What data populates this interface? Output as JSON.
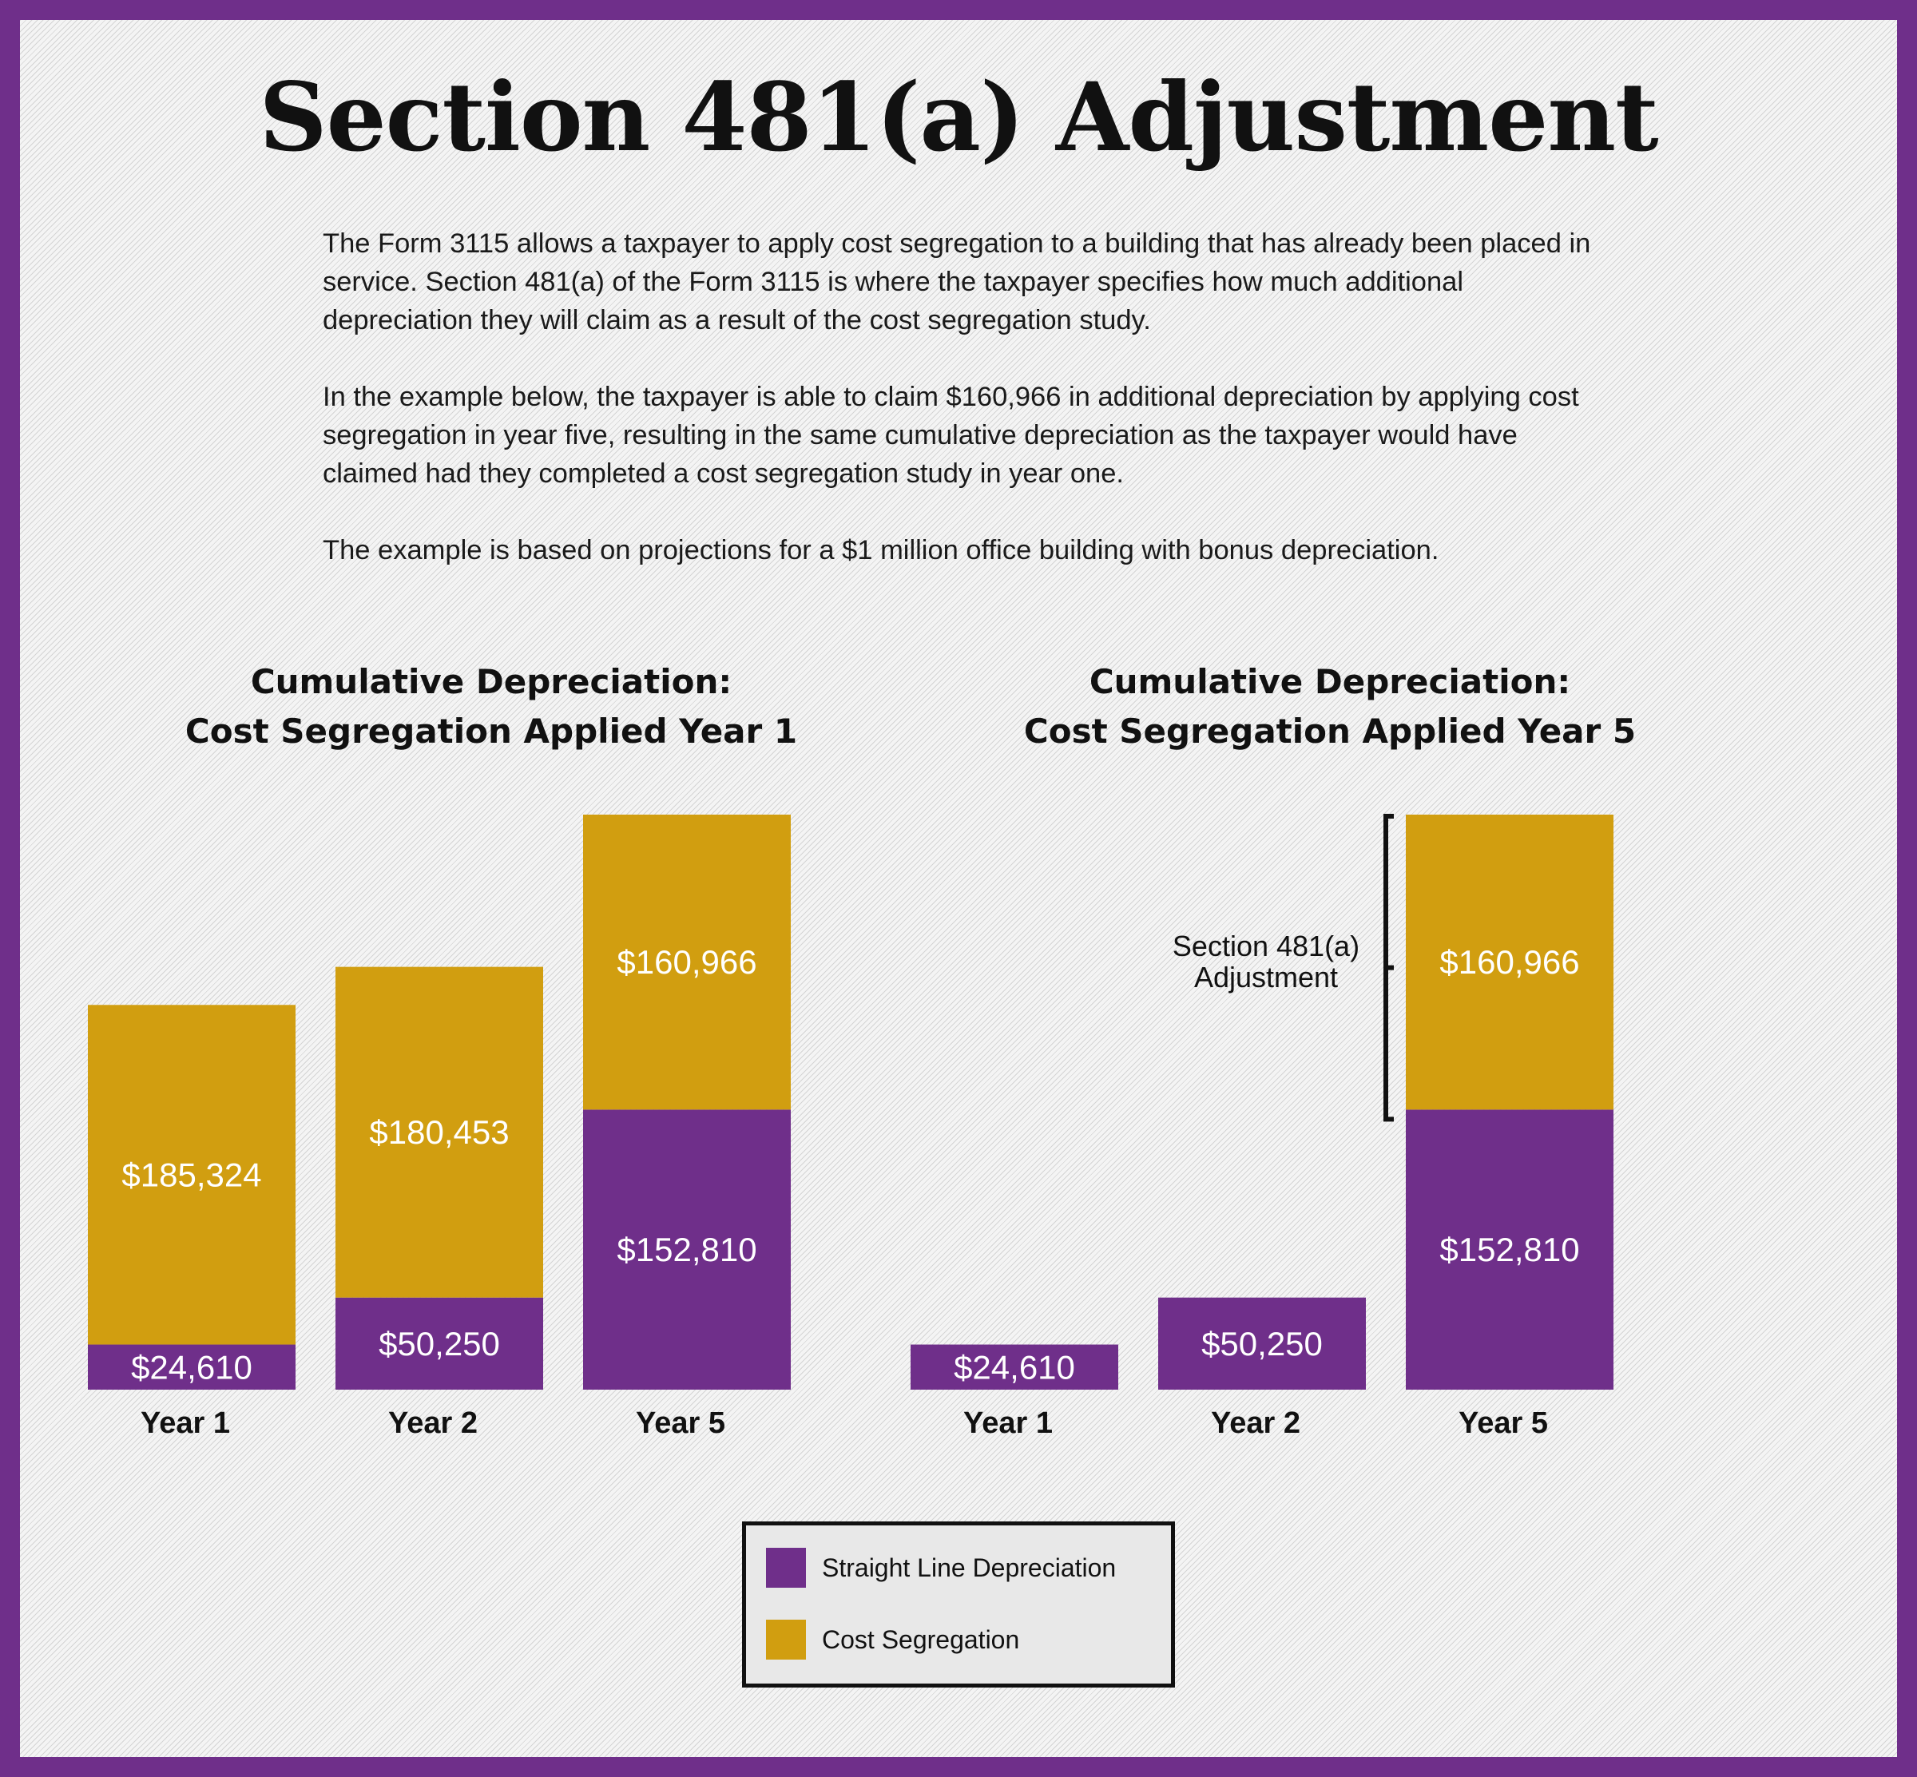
{
  "title": "Section 481(a) Adjustment",
  "intro": {
    "p1": "The Form 3115 allows a taxpayer to apply cost segregation to a building that has already been placed in service. Section 481(a) of the Form 3115 is where the taxpayer specifies how much additional depreciation they will claim as a result of the cost segregation study.",
    "p2": "In the example below, the taxpayer is able to claim $160,966 in additional depreciation by applying cost segregation in year five, resulting in the same cumulative depreciation as the taxpayer would have claimed had they completed a cost segregation study in year one.",
    "p3": "The example is based on projections for a $1 million office building with bonus depreciation."
  },
  "colors": {
    "straight_line": "#6f2f8a",
    "cost_seg": "#d19e10",
    "border": "#6f2f8a"
  },
  "legend": {
    "straight_line": "Straight Line Depreciation",
    "cost_seg": "Cost Segregation"
  },
  "chart_data": [
    {
      "type": "bar",
      "stacked": true,
      "title_line1": "Cumulative Depreciation:",
      "title_line2": "Cost Segregation Applied Year 1",
      "categories": [
        "Year 1",
        "Year 2",
        "Year 5"
      ],
      "series": [
        {
          "name": "Straight Line Depreciation",
          "values": [
            24610,
            50250,
            152810
          ],
          "labels": [
            "$24,610",
            "$50,250",
            "$152,810"
          ]
        },
        {
          "name": "Cost Segregation",
          "values": [
            185324,
            180453,
            160966
          ],
          "labels": [
            "$185,324",
            "$180,453",
            "$160,966"
          ]
        }
      ],
      "legend_position": "bottom",
      "grid": false
    },
    {
      "type": "bar",
      "stacked": true,
      "title_line1": "Cumulative Depreciation:",
      "title_line2": "Cost Segregation Applied Year 5",
      "categories": [
        "Year 1",
        "Year 2",
        "Year 5"
      ],
      "series": [
        {
          "name": "Straight Line Depreciation",
          "values": [
            24610,
            50250,
            152810
          ],
          "labels": [
            "$24,610",
            "$50,250",
            "$152,810"
          ]
        },
        {
          "name": "Cost Segregation",
          "values": [
            0,
            0,
            160966
          ],
          "labels": [
            "",
            "",
            "$160,966"
          ]
        }
      ],
      "annotation": {
        "line1": "Section 481(a)",
        "line2": "Adjustment"
      },
      "legend_position": "bottom",
      "grid": false
    }
  ]
}
